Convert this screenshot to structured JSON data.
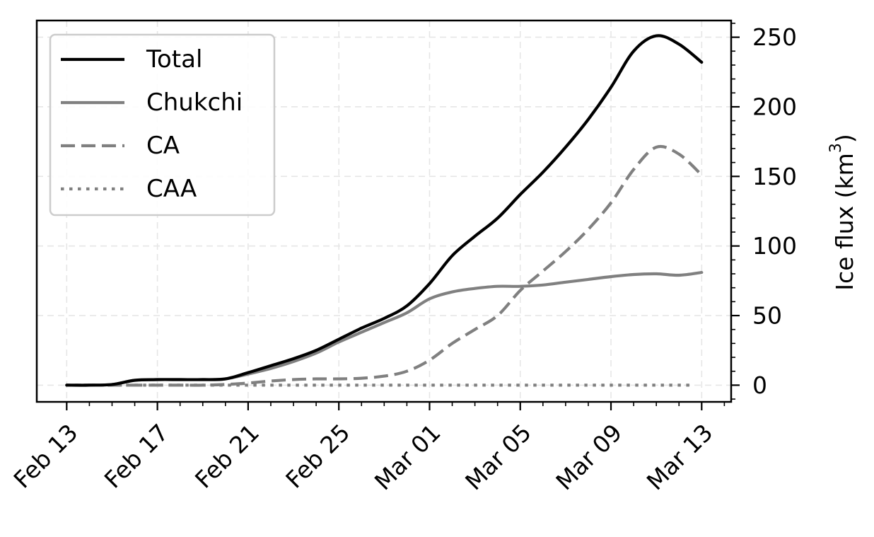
{
  "chart_data": {
    "type": "line",
    "title": "",
    "xlabel": "",
    "ylabel_main": "Ice flux (km",
    "ylabel_sup": "3",
    "ylabel_close": ")",
    "y_axis_side": "right",
    "x_ticks": [
      "Feb 13",
      "Feb 17",
      "Feb 21",
      "Feb 25",
      "Mar 01",
      "Mar 05",
      "Mar 09",
      "Mar 13"
    ],
    "x_tick_days": [
      0,
      4,
      8,
      12,
      16,
      20,
      24,
      28
    ],
    "xlim_days": [
      -1.32,
      29.3
    ],
    "y_ticks": [
      "0",
      "50",
      "100",
      "150",
      "200",
      "250"
    ],
    "y_tick_values": [
      0,
      50,
      100,
      150,
      200,
      250
    ],
    "ylim": [
      -12,
      262
    ],
    "grid": true,
    "legend_position": "top-left",
    "series": [
      {
        "name": "Total",
        "color": "#000000",
        "style": "solid",
        "x": [
          0,
          1,
          2,
          3,
          4,
          5,
          6,
          7,
          8,
          9,
          10,
          11,
          12,
          13,
          14,
          15,
          16,
          17,
          18,
          19,
          20,
          21,
          22,
          23,
          24,
          25,
          26,
          27,
          28
        ],
        "y": [
          0,
          0,
          0.5,
          3.5,
          4,
          4,
          4,
          4.5,
          9,
          14,
          19,
          25,
          33,
          41,
          48,
          57,
          73,
          93,
          107,
          120,
          137,
          153,
          171,
          191,
          214,
          240,
          251,
          245,
          232
        ]
      },
      {
        "name": "Chukchi",
        "color": "#808080",
        "style": "solid",
        "x": [
          0,
          1,
          2,
          3,
          4,
          5,
          6,
          7,
          8,
          9,
          10,
          11,
          12,
          13,
          14,
          15,
          16,
          17,
          18,
          19,
          20,
          21,
          22,
          23,
          24,
          25,
          26,
          27,
          28
        ],
        "y": [
          0,
          0,
          0.5,
          3.5,
          4,
          4,
          4,
          4.5,
          8,
          12,
          17,
          23,
          31,
          38,
          45,
          52,
          62,
          67,
          69.5,
          71,
          71,
          72,
          74,
          76,
          78,
          79.5,
          80,
          79,
          81
        ]
      },
      {
        "name": "CA",
        "color": "#808080",
        "style": "dashed",
        "x": [
          0,
          1,
          2,
          3,
          4,
          5,
          6,
          7,
          8,
          9,
          10,
          11,
          12,
          13,
          14,
          15,
          16,
          17,
          18,
          19,
          20,
          21,
          22,
          23,
          24,
          25,
          26,
          27,
          28
        ],
        "y": [
          0,
          0,
          0,
          0,
          0,
          0,
          0,
          0.5,
          1.5,
          3,
          4,
          4.5,
          4.5,
          5,
          6.5,
          10,
          18,
          30,
          40,
          50,
          68,
          82,
          96,
          112,
          131,
          155,
          171,
          166,
          151
        ]
      },
      {
        "name": "CAA",
        "color": "#808080",
        "style": "dotted",
        "x": [
          0,
          4,
          8,
          12,
          16,
          20,
          24,
          27.5
        ],
        "y": [
          0,
          0,
          0,
          0,
          0,
          0,
          0,
          0
        ]
      }
    ]
  }
}
